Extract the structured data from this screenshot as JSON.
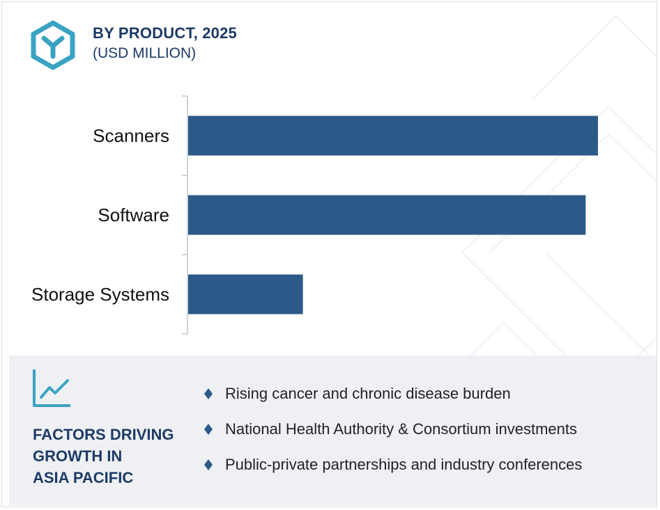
{
  "header": {
    "title": "BY PRODUCT, 2025",
    "subtitle": "(USD MILLION)"
  },
  "icons": {
    "logo": "hexagon-y-icon",
    "trend": "line-chart-icon",
    "bullet": "diamond-bullet-icon"
  },
  "colors": {
    "bar": "#2c5a88",
    "heading": "#1d3a66",
    "accent": "#3aa3c4",
    "panel_bg": "#eef0f4"
  },
  "chart_data": {
    "type": "bar",
    "orientation": "horizontal",
    "categories": [
      "Scanners",
      "Software",
      "Storage Systems"
    ],
    "values": [
      100,
      97,
      28
    ],
    "value_axis_shown": false
  },
  "factors": {
    "title_lines": [
      "FACTORS DRIVING",
      "GROWTH IN",
      "ASIA PACIFIC"
    ],
    "items": [
      "Rising cancer and chronic disease burden",
      "National Health Authority & Consortium investments",
      "Public-private partnerships and industry conferences"
    ]
  }
}
